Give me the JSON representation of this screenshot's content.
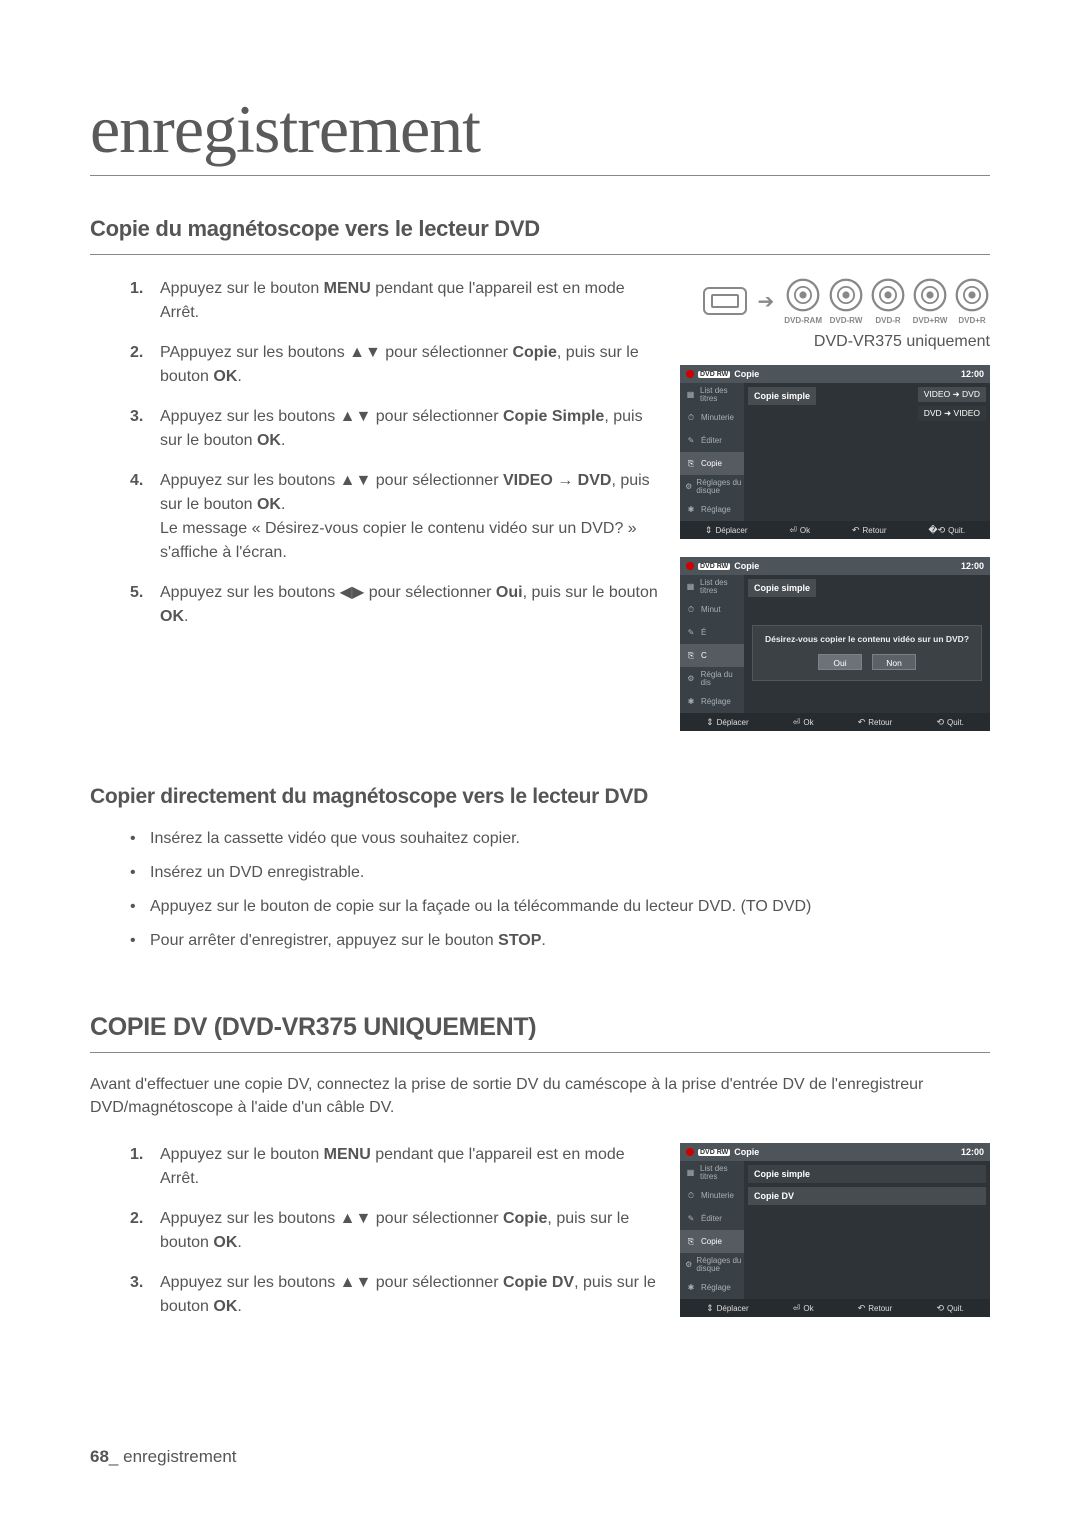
{
  "page": {
    "title": "enregistrement",
    "number": "68",
    "footer_label": "enregistrement"
  },
  "section1": {
    "heading": "Copie du magnétoscope vers le lecteur DVD",
    "note": "DVD-VR375 uniquement",
    "disc_labels": [
      "DVD-RAM",
      "DVD-RW",
      "DVD-R",
      "DVD+RW",
      "DVD+R"
    ],
    "steps": [
      {
        "num": "1.",
        "html": "Appuyez sur le bouton <b>MENU</b> pendant que l'appareil est en mode Arrêt."
      },
      {
        "num": "2.",
        "html": "PAppuyez sur les boutons ▲▼ pour sélectionner <b>Copie</b>, puis sur le bouton <b>OK</b>."
      },
      {
        "num": "3.",
        "html": "Appuyez sur les boutons ▲▼ pour sélectionner <b>Copie Simple</b>, puis sur le bouton <b>OK</b>."
      },
      {
        "num": "4.",
        "html": "Appuyez sur les boutons ▲▼ pour sélectionner <b>VIDEO → DVD</b>, puis sur le bouton <b>OK</b>.<br>Le message « Désirez-vous copier le contenu vidéo sur un DVD? » s'affiche à l'écran."
      },
      {
        "num": "5.",
        "html": "Appuyez sur les boutons ◀▶ pour sélectionner <b>Oui</b>, puis sur le bouton <b>OK</b>."
      }
    ]
  },
  "section2": {
    "heading": "Copier directement du magnétoscope vers le lecteur DVD",
    "bullets": [
      "Insérez la cassette vidéo que vous souhaitez copier.",
      "Insérez un DVD enregistrable.",
      "Appuyez sur le bouton de copie sur la façade ou la télécommande du lecteur DVD. (TO DVD)",
      {
        "html": "Pour arrêter d'enregistrer, appuyez sur le bouton <b>STOP</b>."
      }
    ]
  },
  "section3": {
    "heading": "COPIE DV (DVD-VR375 UNIQUEMENT)",
    "intro": "Avant d'effectuer une copie DV, connectez la prise de sortie DV du caméscope à la prise d'entrée DV de l'enregistreur DVD/magnétoscope à l'aide d'un câble DV.",
    "steps": [
      {
        "num": "1.",
        "html": "Appuyez sur le bouton <b>MENU</b> pendant que l'appareil est en mode Arrêt."
      },
      {
        "num": "2.",
        "html": "Appuyez sur les boutons ▲▼ pour sélectionner <b>Copie</b>, puis sur le bouton <b>OK</b>."
      },
      {
        "num": "3.",
        "html": "Appuyez sur les boutons ▲▼ pour sélectionner <b>Copie DV</b>, puis sur le bouton <b>OK</b>."
      }
    ]
  },
  "osd": {
    "time": "12:00",
    "top_title": "Copie",
    "side_items": [
      "List des titres",
      "Minuterie",
      "Éditer",
      "Copie",
      "Réglages du disque",
      "Réglage"
    ],
    "side_items_short": [
      "List des titres",
      "Minut",
      "É",
      "C",
      "Régla du dis",
      "Réglage"
    ],
    "badge": "DVD RW",
    "screen1": {
      "item": "Copie simple",
      "pill1": "VIDEO ➜ DVD",
      "pill2": "DVD ➜ VIDEO"
    },
    "screen2": {
      "item": "Copie simple",
      "dialog_msg": "Désirez-vous copier le contenu vidéo sur un DVD?",
      "yes": "Oui",
      "no": "Non"
    },
    "screen3": {
      "item1": "Copie simple",
      "item2": "Copie DV"
    },
    "footer": {
      "move": "Déplacer",
      "ok": "Ok",
      "return": "Retour",
      "quit": "Quit."
    }
  },
  "colors": {
    "rule": "#888888",
    "text": "#555555",
    "osd_bg": "#2d3337",
    "osd_side": "#3a4146",
    "osd_top": "#4e555a",
    "osd_item": "#464c50",
    "osd_footer": "#262b2f"
  }
}
